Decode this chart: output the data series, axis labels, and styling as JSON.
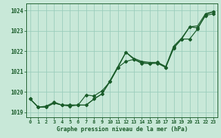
{
  "title": "Graphe pression niveau de la mer (hPa)",
  "background_color": "#c8e8d8",
  "grid_color": "#99ccbb",
  "line_color": "#1a5c2a",
  "x_labels": [
    "0",
    "1",
    "2",
    "3",
    "4",
    "5",
    "6",
    "7",
    "8",
    "9",
    "10",
    "11",
    "12",
    "13",
    "14",
    "15",
    "16",
    "17",
    "18",
    "19",
    "20",
    "21",
    "22",
    "23"
  ],
  "ylim": [
    1018.75,
    1024.35
  ],
  "yticks": [
    1019,
    1020,
    1021,
    1022,
    1023,
    1024
  ],
  "series1": [
    1019.65,
    1019.25,
    1019.25,
    1019.45,
    1019.35,
    1019.35,
    1019.35,
    1019.35,
    1019.65,
    1019.9,
    1020.5,
    1021.2,
    1021.95,
    1021.6,
    1021.4,
    1021.4,
    1021.4,
    1021.2,
    1022.2,
    1022.6,
    1023.2,
    1023.15,
    1023.75,
    1023.85
  ],
  "series2": [
    1019.65,
    1019.25,
    1019.25,
    1019.45,
    1019.35,
    1019.35,
    1019.35,
    1019.35,
    1019.65,
    1019.9,
    1020.55,
    1021.25,
    1021.95,
    1021.65,
    1021.5,
    1021.45,
    1021.45,
    1021.25,
    1022.25,
    1022.65,
    1023.2,
    1023.25,
    1023.85,
    1023.95
  ],
  "series3": [
    1019.65,
    1019.25,
    1019.3,
    1019.5,
    1019.35,
    1019.3,
    1019.35,
    1019.85,
    1019.8,
    1020.05,
    1020.5,
    1021.2,
    1021.5,
    1021.6,
    1021.45,
    1021.4,
    1021.45,
    1021.2,
    1022.15,
    1022.6,
    1022.6,
    1023.1,
    1023.8,
    1023.95
  ]
}
